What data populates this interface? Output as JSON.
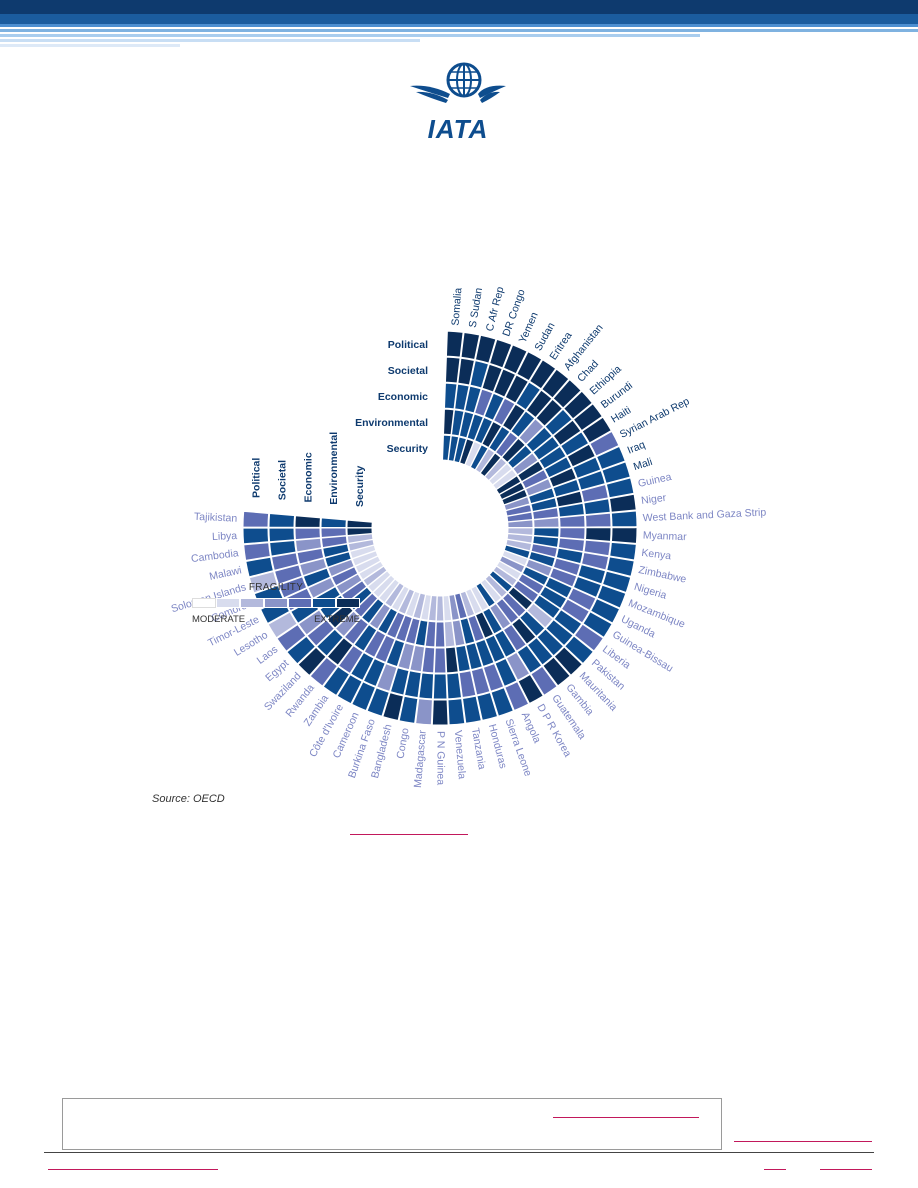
{
  "logo": {
    "text": "IATA",
    "color": "#0e4d8e"
  },
  "chart_data": {
    "type": "heatmap",
    "layout": "radial",
    "source": "Source: OECD",
    "legend": {
      "title": "FRAGILITY",
      "min_label": "MODERATE",
      "max_label": "EXTREME",
      "levels": [
        1,
        2,
        3,
        4,
        5,
        6,
        7
      ],
      "colors": [
        "#ffffff",
        "#d8dcee",
        "#b3b9dc",
        "#8a94c8",
        "#5d6db4",
        "#0e4d8e",
        "#0b2d58"
      ]
    },
    "dimensions": [
      "Political",
      "Societal",
      "Economic",
      "Environmental",
      "Security"
    ],
    "rows": [
      {
        "name": "Somalia",
        "values": [
          7,
          7,
          6,
          7,
          6
        ],
        "label_color": "#0e3a6e"
      },
      {
        "name": "S Sudan",
        "values": [
          7,
          7,
          6,
          6,
          6
        ],
        "label_color": "#0e3a6e"
      },
      {
        "name": "C Afr Rep",
        "values": [
          7,
          6,
          6,
          6,
          6
        ],
        "label_color": "#0e3a6e"
      },
      {
        "name": "DR Congo",
        "values": [
          7,
          7,
          5,
          6,
          7
        ],
        "label_color": "#0e3a6e"
      },
      {
        "name": "Yemen",
        "values": [
          7,
          7,
          6,
          6,
          2
        ],
        "label_color": "#0e3a6e"
      },
      {
        "name": "Sudan",
        "values": [
          7,
          7,
          5,
          7,
          6
        ],
        "label_color": "#0e3a6e"
      },
      {
        "name": "Eritrea",
        "values": [
          7,
          6,
          7,
          6,
          3
        ],
        "label_color": "#0e3a6e"
      },
      {
        "name": "Afghanistan",
        "values": [
          7,
          7,
          6,
          5,
          7
        ],
        "label_color": "#0e3a6e"
      },
      {
        "name": "Chad",
        "values": [
          7,
          7,
          4,
          7,
          3
        ],
        "label_color": "#0e3a6e"
      },
      {
        "name": "Ethiopia",
        "values": [
          7,
          6,
          6,
          6,
          2
        ],
        "label_color": "#0e3a6e"
      },
      {
        "name": "Burundi",
        "values": [
          7,
          7,
          6,
          4,
          2
        ],
        "label_color": "#0e3a6e"
      },
      {
        "name": "Haiti",
        "values": [
          7,
          6,
          6,
          7,
          7
        ],
        "label_color": "#0e3a6e"
      },
      {
        "name": "Syrian Arab Rep",
        "values": [
          5,
          7,
          6,
          5,
          7
        ],
        "label_color": "#0e3a6e"
      },
      {
        "name": "Iraq",
        "values": [
          6,
          6,
          7,
          4,
          7
        ],
        "label_color": "#0e3a6e"
      },
      {
        "name": "Mali",
        "values": [
          6,
          6,
          6,
          6,
          4
        ],
        "label_color": "#0e3a6e"
      },
      {
        "name": "Guinea",
        "values": [
          6,
          5,
          7,
          6,
          5
        ],
        "label_color": "#7d86c4"
      },
      {
        "name": "Niger",
        "values": [
          7,
          6,
          6,
          5,
          5
        ],
        "label_color": "#7d86c4"
      },
      {
        "name": "West Bank and Gaza Strip",
        "values": [
          6,
          5,
          5,
          4,
          4
        ],
        "label_color": "#7d86c4"
      },
      {
        "name": "Myanmar",
        "values": [
          7,
          7,
          5,
          6,
          3
        ],
        "label_color": "#7d86c4"
      },
      {
        "name": "Kenya",
        "values": [
          6,
          5,
          5,
          6,
          3
        ],
        "label_color": "#7d86c4"
      },
      {
        "name": "Zimbabwe",
        "values": [
          6,
          5,
          6,
          5,
          3
        ],
        "label_color": "#7d86c4"
      },
      {
        "name": "Nigeria",
        "values": [
          6,
          6,
          5,
          6,
          6
        ],
        "label_color": "#7d86c4"
      },
      {
        "name": "Mozambique",
        "values": [
          6,
          6,
          5,
          4,
          2
        ],
        "label_color": "#7d86c4"
      },
      {
        "name": "Uganda",
        "values": [
          6,
          5,
          6,
          6,
          4
        ],
        "label_color": "#7d86c4"
      },
      {
        "name": "Guinea-Bissau",
        "values": [
          6,
          5,
          6,
          5,
          2
        ],
        "label_color": "#7d86c4"
      },
      {
        "name": "Liberia",
        "values": [
          5,
          6,
          6,
          5,
          3
        ],
        "label_color": "#7d86c4"
      },
      {
        "name": "Pakistan",
        "values": [
          6,
          6,
          3,
          7,
          6
        ],
        "label_color": "#7d86c4"
      },
      {
        "name": "Mauritania",
        "values": [
          7,
          6,
          6,
          5,
          3
        ],
        "label_color": "#7d86c4"
      },
      {
        "name": "Gambia",
        "values": [
          7,
          6,
          7,
          5,
          2
        ],
        "label_color": "#7d86c4"
      },
      {
        "name": "Guatemala",
        "values": [
          5,
          6,
          5,
          4,
          6
        ],
        "label_color": "#7d86c4"
      },
      {
        "name": "D P R Korea",
        "values": [
          7,
          4,
          6,
          6,
          2
        ],
        "label_color": "#7d86c4"
      },
      {
        "name": "Angola",
        "values": [
          5,
          6,
          6,
          7,
          2
        ],
        "label_color": "#7d86c4"
      },
      {
        "name": "Sierra Leone",
        "values": [
          6,
          5,
          6,
          5,
          3
        ],
        "label_color": "#7d86c4"
      },
      {
        "name": "Honduras",
        "values": [
          6,
          5,
          6,
          6,
          5
        ],
        "label_color": "#7d86c4"
      },
      {
        "name": "Tanzania",
        "values": [
          6,
          5,
          6,
          4,
          4
        ],
        "label_color": "#7d86c4"
      },
      {
        "name": "Venezuela",
        "values": [
          6,
          6,
          7,
          3,
          2
        ],
        "label_color": "#7d86c4"
      },
      {
        "name": "P N Guinea",
        "values": [
          7,
          6,
          5,
          5,
          3
        ],
        "label_color": "#7d86c4"
      },
      {
        "name": "Madagascar",
        "values": [
          4,
          6,
          5,
          5,
          3
        ],
        "label_color": "#7d86c4"
      },
      {
        "name": "Congo",
        "values": [
          6,
          6,
          4,
          6,
          2
        ],
        "label_color": "#7d86c4"
      },
      {
        "name": "Bangladesh",
        "values": [
          7,
          6,
          4,
          5,
          3
        ],
        "label_color": "#7d86c4"
      },
      {
        "name": "Burkina Faso",
        "values": [
          6,
          4,
          6,
          5,
          2
        ],
        "label_color": "#7d86c4"
      },
      {
        "name": "Cameroon",
        "values": [
          6,
          6,
          5,
          5,
          3
        ],
        "label_color": "#7d86c4"
      },
      {
        "name": "Côte d'Ivoire",
        "values": [
          6,
          6,
          5,
          6,
          2
        ],
        "label_color": "#7d86c4"
      },
      {
        "name": "Zambia",
        "values": [
          6,
          5,
          6,
          4,
          3
        ],
        "label_color": "#7d86c4"
      },
      {
        "name": "Rwanda",
        "values": [
          5,
          7,
          5,
          6,
          2
        ],
        "label_color": "#7d86c4"
      },
      {
        "name": "Swaziland",
        "values": [
          7,
          6,
          4,
          5,
          2
        ],
        "label_color": "#7d86c4"
      },
      {
        "name": "Egypt",
        "values": [
          6,
          5,
          7,
          6,
          2
        ],
        "label_color": "#7d86c4"
      },
      {
        "name": "Laos",
        "values": [
          5,
          4,
          6,
          5,
          3
        ],
        "label_color": "#7d86c4"
      },
      {
        "name": "Lesotho",
        "values": [
          3,
          6,
          6,
          4,
          2
        ],
        "label_color": "#7d86c4"
      },
      {
        "name": "Timor-Leste",
        "values": [
          6,
          5,
          4,
          5,
          2
        ],
        "label_color": "#7d86c4"
      },
      {
        "name": "Comoros",
        "values": [
          6,
          5,
          6,
          4,
          2
        ],
        "label_color": "#7d86c4"
      },
      {
        "name": "Solomon Islands",
        "values": [
          3,
          5,
          4,
          6,
          2
        ],
        "label_color": "#7d86c4"
      },
      {
        "name": "Malawi",
        "values": [
          6,
          5,
          5,
          6,
          3
        ],
        "label_color": "#7d86c4"
      },
      {
        "name": "Cambodia",
        "values": [
          5,
          6,
          4,
          5,
          3
        ],
        "label_color": "#7d86c4"
      },
      {
        "name": "Libya",
        "values": [
          6,
          6,
          5,
          5,
          7
        ],
        "label_color": "#7d86c4"
      },
      {
        "name": "Tajikistan",
        "values": [
          5,
          6,
          7,
          6,
          7
        ],
        "label_color": "#7d86c4"
      }
    ]
  }
}
